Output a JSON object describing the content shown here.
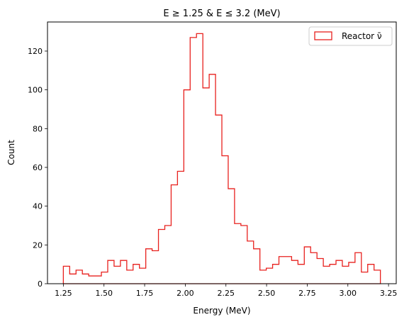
{
  "chart_data": {
    "type": "histogram",
    "title": "E  ≥  1.25 & E  ≤  3.2 (MeV)",
    "xlabel": "Energy (MeV)",
    "ylabel": "Count",
    "xlim": [
      1.1525,
      3.2975
    ],
    "ylim": [
      0,
      135
    ],
    "x_ticks": [
      1.25,
      1.5,
      1.75,
      2.0,
      2.25,
      2.5,
      2.75,
      3.0,
      3.25
    ],
    "x_tick_labels": [
      "1.25",
      "1.50",
      "1.75",
      "2.00",
      "2.25",
      "2.50",
      "2.75",
      "3.00",
      "3.25"
    ],
    "y_ticks": [
      0,
      20,
      40,
      60,
      80,
      100,
      120
    ],
    "y_tick_labels": [
      "0",
      "20",
      "40",
      "60",
      "80",
      "100",
      "120"
    ],
    "grid": false,
    "legend_position": "top-right",
    "series": [
      {
        "name": "Reactor ν̄",
        "color": "#e8211e",
        "bin_start": 1.25,
        "bin_end": 3.2,
        "values": [
          9,
          5,
          7,
          5,
          4,
          4,
          6,
          12,
          9,
          12,
          7,
          10,
          8,
          18,
          17,
          28,
          30,
          51,
          58,
          100,
          127,
          129,
          101,
          108,
          87,
          66,
          49,
          31,
          30,
          22,
          18,
          7,
          8,
          10,
          14,
          14,
          12,
          10,
          19,
          16,
          13,
          9,
          10,
          12,
          9,
          11,
          16,
          6,
          10,
          7
        ]
      }
    ]
  }
}
